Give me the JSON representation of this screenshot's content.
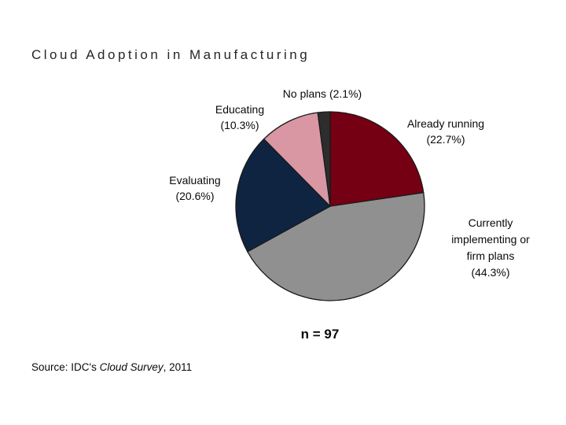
{
  "header": {
    "title": "Cloud Adoption in Manufacturing"
  },
  "chart_data": {
    "type": "pie",
    "title": "Cloud Adoption in Manufacturing",
    "sample_label": "n = 97",
    "sample_size": 97,
    "start_angle": "12 o'clock",
    "direction": "clockwise",
    "outline_color": "#1A1A1A",
    "background_color": "#FFFFFF",
    "legend_position": "callout labels around pie",
    "segments": [
      {
        "label": "Already running",
        "pct": 22.7,
        "color": "#750013",
        "callout_lines": [
          "Already running",
          "(22.7%)"
        ]
      },
      {
        "label": "Currently implementing or firm plans",
        "pct": 44.3,
        "color": "#909090",
        "callout_lines": [
          "Currently",
          "implementing or",
          "firm plans",
          "(44.3%)"
        ]
      },
      {
        "label": "Evaluating",
        "pct": 20.6,
        "color": "#0E2441",
        "callout_lines": [
          "Evaluating",
          "(20.6%)"
        ]
      },
      {
        "label": "Educating",
        "pct": 10.3,
        "color": "#D897A2",
        "callout_lines": [
          "Educating",
          "(10.3%)"
        ]
      },
      {
        "label": "No plans",
        "pct": 2.1,
        "color": "#2D2D2D",
        "callout_lines": [
          "No plans (2.1%)"
        ]
      }
    ]
  },
  "footer": {
    "source_prefix": "Source: IDC's ",
    "source_italic": "Cloud Survey",
    "source_suffix": ", 2011"
  }
}
